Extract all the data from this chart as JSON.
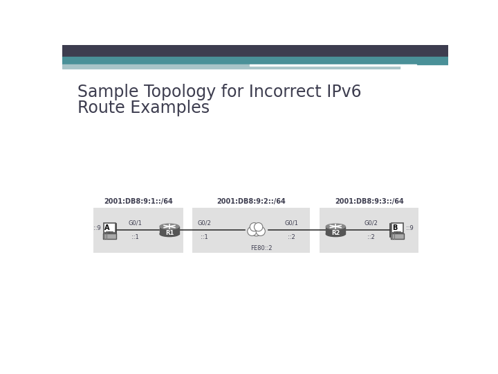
{
  "title_line1": "Sample Topology for Incorrect IPv6",
  "title_line2": "Route Examples",
  "title_color": "#3d3d4f",
  "title_fontsize": 17,
  "bg_color": "#ffffff",
  "header_dark_color": "#3d3d4f",
  "header_teal_color": "#4a9098",
  "header_light_teal": "#a8c4c8",
  "subnet1_label": "2001:DB8:9:1::/64",
  "subnet2_label": "2001:DB8:9:2::/64",
  "subnet3_label": "2001:DB8:9:3::/64",
  "node_a_label": "A",
  "node_b_label": "B",
  "r1_label": "R1",
  "r2_label": "R2",
  "a_addr": "::9",
  "b_addr": "::9",
  "r1_g01": "G0/1",
  "r1_g01_addr": "::1",
  "r1_g02": "G0/2",
  "r1_g02_addr": "::1",
  "r2_g01": "G0/1",
  "r2_g01_addr": "::2",
  "r2_g02": "G0/2",
  "r2_g02_addr": "::2",
  "fe80_label": "FE80::2",
  "box_color": "#e0e0e0",
  "router_color": "#555555",
  "router_top_color": "#888888",
  "line_color": "#333333",
  "small_font": 6,
  "label_font": 7
}
